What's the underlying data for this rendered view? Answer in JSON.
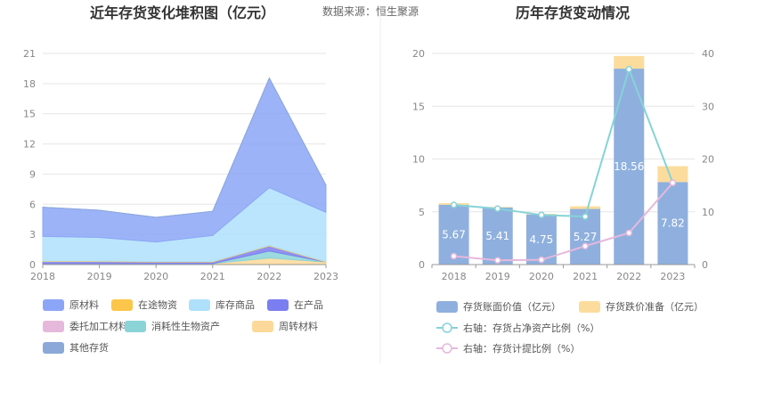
{
  "source_text": "数据来源：恒生聚源",
  "chart_data": [
    {
      "type": "area",
      "title": "近年存货变化堆积图（亿元）",
      "xlabel": "",
      "ylabel": "",
      "ylim": [
        0,
        21
      ],
      "yticks": [
        0,
        3,
        6,
        9,
        12,
        15,
        18,
        21
      ],
      "categories": [
        "2018",
        "2019",
        "2020",
        "2021",
        "2022",
        "2023"
      ],
      "stacked": true,
      "legend_position": "bottom",
      "series": [
        {
          "name": "委托加工材料",
          "color": "#e6b8dc",
          "values": [
            0.05,
            0.05,
            0.05,
            0.05,
            0.05,
            0.05
          ]
        },
        {
          "name": "周转材料",
          "color": "#fcd99a",
          "values": [
            0.05,
            0.05,
            0.05,
            0.05,
            0.6,
            0.2
          ]
        },
        {
          "name": "消耗性生物资产",
          "color": "#8ad4d8",
          "values": [
            0.0,
            0.0,
            0.0,
            0.0,
            0.7,
            0.0
          ]
        },
        {
          "name": "在产品",
          "color": "#7b7ef0",
          "values": [
            0.2,
            0.2,
            0.15,
            0.15,
            0.5,
            0.0
          ]
        },
        {
          "name": "在途物资",
          "color": "#fbc64a",
          "values": [
            0.05,
            0.05,
            0.05,
            0.05,
            0.05,
            0.05
          ]
        },
        {
          "name": "库存商品",
          "color": "#aee0fb",
          "values": [
            2.45,
            2.35,
            1.95,
            2.6,
            5.75,
            4.9
          ]
        },
        {
          "name": "原材料",
          "color": "#8ca6f7",
          "values": [
            2.9,
            2.7,
            2.45,
            2.4,
            10.9,
            2.7
          ]
        },
        {
          "name": "其他存货",
          "color": "#8ba8d8",
          "values": [
            0,
            0,
            0,
            0,
            0,
            0
          ]
        }
      ],
      "legend_order": [
        "原材料",
        "在途物资",
        "库存商品",
        "在产品",
        "委托加工材料",
        "消耗性生物资产",
        "周转材料",
        "其他存货"
      ]
    },
    {
      "type": "bar",
      "title": "历年存货变动情况",
      "categories": [
        "2018",
        "2019",
        "2020",
        "2021",
        "2022",
        "2023"
      ],
      "ylim": [
        0,
        20
      ],
      "yticks": [
        0,
        5,
        10,
        15,
        20
      ],
      "y2lim": [
        0,
        40
      ],
      "y2ticks": [
        0,
        10,
        20,
        30,
        40
      ],
      "legend_position": "bottom",
      "series": [
        {
          "name": "存货账面价值（亿元）",
          "axis": "left",
          "kind": "bar",
          "color": "#8fb0de",
          "values": [
            5.67,
            5.41,
            4.75,
            5.27,
            18.56,
            7.82
          ],
          "labels": [
            "5.67",
            "5.41",
            "4.75",
            "5.27",
            "18.56",
            "7.82"
          ]
        },
        {
          "name": "存货跌价准备（亿元）",
          "axis": "left",
          "kind": "bar-stacked",
          "color": "#fcdc9c",
          "values": [
            0.15,
            0.05,
            0.05,
            0.25,
            1.2,
            1.5
          ]
        },
        {
          "name": "右轴：存货占净资产比例（%）",
          "axis": "right",
          "kind": "line",
          "color": "#86d3d6",
          "values": [
            11.3,
            10.6,
            9.4,
            9.1,
            37.0,
            15.5
          ]
        },
        {
          "name": "右轴：存货计提比例（%）",
          "axis": "right",
          "kind": "line",
          "color": "#e6b8dc",
          "values": [
            1.6,
            0.8,
            0.9,
            3.5,
            6.0,
            15.5
          ]
        }
      ]
    }
  ]
}
